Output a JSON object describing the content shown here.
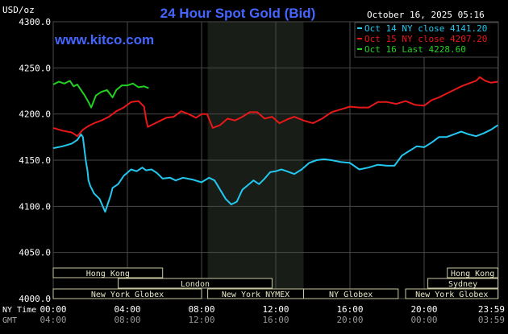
{
  "chart_data": {
    "type": "line",
    "title": "24 Hour Spot Gold (Bid)",
    "brand": "www.kitco.com",
    "unit_label": "USD/oz",
    "timestamp": "October 16, 2025 05:16",
    "ylim": [
      4000,
      4300
    ],
    "yticks": [
      {
        "value": 4300,
        "label": "4300.0"
      },
      {
        "value": 4250,
        "label": "4250.0"
      },
      {
        "value": 4200,
        "label": "4200.0"
      },
      {
        "value": 4150,
        "label": "4150.0"
      },
      {
        "value": 4100,
        "label": "4100.0"
      },
      {
        "value": 4050,
        "label": "4050.0"
      },
      {
        "value": 4000,
        "label": "4000.0"
      }
    ],
    "xlim": [
      0,
      24
    ],
    "xticks": [
      {
        "hour": 0,
        "ny": "00:00",
        "gmt": "04:00"
      },
      {
        "hour": 4,
        "ny": "04:00",
        "gmt": "08:00"
      },
      {
        "hour": 8,
        "ny": "08:00",
        "gmt": "12:00"
      },
      {
        "hour": 12,
        "ny": "12:00",
        "gmt": "16:00"
      },
      {
        "hour": 16,
        "ny": "16:00",
        "gmt": "20:00"
      },
      {
        "hour": 20,
        "ny": "20:00",
        "gmt": "00:00"
      },
      {
        "hour": 23.98,
        "ny": "23:59",
        "gmt": "03:59"
      }
    ],
    "x_row_labels": {
      "ny": "NY Time",
      "gmt": "GMT"
    },
    "shaded_hours": [
      8.33,
      13.5
    ],
    "series": [
      {
        "name": "Oct 14 NY close 4141.20",
        "color": "#22c8f0",
        "x": [
          0,
          0.5,
          1,
          1.3,
          1.5,
          1.6,
          1.75,
          1.85,
          1.9,
          2.0,
          2.2,
          2.5,
          2.8,
          3.1,
          3.2,
          3.5,
          3.8,
          4.2,
          4.5,
          4.8,
          5.0,
          5.3,
          5.6,
          5.9,
          6.3,
          6.6,
          7.0,
          7.5,
          8.0,
          8.4,
          8.7,
          9.0,
          9.3,
          9.6,
          9.9,
          10.2,
          10.5,
          10.8,
          11.1,
          11.4,
          11.7,
          12.0,
          12.3,
          12.6,
          13.0,
          13.4,
          13.8,
          14.2,
          14.6,
          15.0,
          15.5,
          16.0,
          16.5,
          17.0,
          17.5,
          18.0,
          18.4,
          18.8,
          19.2,
          19.6,
          20.0,
          20.4,
          20.8,
          21.2,
          21.6,
          22.0,
          22.4,
          22.8,
          23.2,
          23.6,
          23.98
        ],
        "y": [
          4163,
          4165,
          4168,
          4172,
          4178,
          4175,
          4150,
          4138,
          4128,
          4122,
          4114,
          4108,
          4094,
          4112,
          4120,
          4124,
          4133,
          4140,
          4138,
          4142,
          4139,
          4140,
          4136,
          4130,
          4131,
          4128,
          4131,
          4129,
          4126,
          4131,
          4128,
          4118,
          4108,
          4102,
          4105,
          4118,
          4123,
          4128,
          4124,
          4130,
          4137,
          4138,
          4140,
          4138,
          4135,
          4140,
          4147,
          4150,
          4151,
          4150,
          4148,
          4147,
          4140,
          4142,
          4145,
          4144,
          4144,
          4155,
          4160,
          4165,
          4164,
          4169,
          4175,
          4175,
          4178,
          4181,
          4178,
          4176,
          4179,
          4183,
          4188
        ]
      },
      {
        "name": "Oct 15 NY close 4207.20",
        "color": "#e81818",
        "x": [
          0,
          0.5,
          1.0,
          1.3,
          1.6,
          1.9,
          2.2,
          2.6,
          3.0,
          3.4,
          3.8,
          4.2,
          4.6,
          4.9,
          5.0,
          5.1,
          5.3,
          5.7,
          6.1,
          6.5,
          6.9,
          7.3,
          7.7,
          8.0,
          8.3,
          8.6,
          9.0,
          9.4,
          9.8,
          10.2,
          10.6,
          11.0,
          11.4,
          11.8,
          12.2,
          12.6,
          13.0,
          13.5,
          14.0,
          14.5,
          15.0,
          15.5,
          16.0,
          16.5,
          17.0,
          17.5,
          18.0,
          18.5,
          19.0,
          19.5,
          20.0,
          20.4,
          20.8,
          21.2,
          21.6,
          22.0,
          22.4,
          22.8,
          23.0,
          23.3,
          23.6,
          23.98
        ],
        "y": [
          4185,
          4182,
          4180,
          4176,
          4183,
          4187,
          4190,
          4193,
          4197,
          4203,
          4207,
          4213,
          4214,
          4208,
          4195,
          4186,
          4188,
          4192,
          4196,
          4197,
          4203,
          4200,
          4196,
          4200,
          4200,
          4185,
          4188,
          4195,
          4193,
          4197,
          4202,
          4202,
          4195,
          4197,
          4190,
          4194,
          4197,
          4193,
          4190,
          4195,
          4202,
          4205,
          4208,
          4207,
          4207,
          4213,
          4213,
          4211,
          4214,
          4210,
          4209,
          4215,
          4218,
          4222,
          4226,
          4230,
          4233,
          4236,
          4240,
          4236,
          4234,
          4235
        ]
      },
      {
        "name": "Oct 16 Last 4228.60",
        "color": "#22d022",
        "x": [
          0,
          0.3,
          0.6,
          0.9,
          1.1,
          1.3,
          1.5,
          1.7,
          1.9,
          2.05,
          2.3,
          2.6,
          2.9,
          3.2,
          3.4,
          3.7,
          4.0,
          4.3,
          4.6,
          4.9,
          5.15
        ],
        "y": [
          4232,
          4235,
          4233,
          4236,
          4230,
          4232,
          4226,
          4220,
          4213,
          4207,
          4220,
          4224,
          4226,
          4218,
          4226,
          4231,
          4231,
          4233,
          4229,
          4230,
          4228
        ]
      }
    ],
    "sessions": [
      {
        "name": "Hong Kong",
        "start": 0,
        "end": 5.9,
        "row": 0
      },
      {
        "name": "Hong Kong",
        "start": 21.25,
        "end": 23.98,
        "row": 0
      },
      {
        "name": "London",
        "start": 3.5,
        "end": 11.8,
        "row": 1
      },
      {
        "name": "Sydney",
        "start": 20.2,
        "end": 23.98,
        "row": 1
      },
      {
        "name": "New York Globex",
        "start": 0,
        "end": 8.0,
        "row": 2
      },
      {
        "name": "New York NYMEX",
        "start": 8.33,
        "end": 13.5,
        "row": 2
      },
      {
        "name": "NY Globex",
        "start": 13.5,
        "end": 18.6,
        "row": 2
      },
      {
        "name": "New York Globex",
        "start": 19.0,
        "end": 23.98,
        "row": 2
      }
    ]
  }
}
